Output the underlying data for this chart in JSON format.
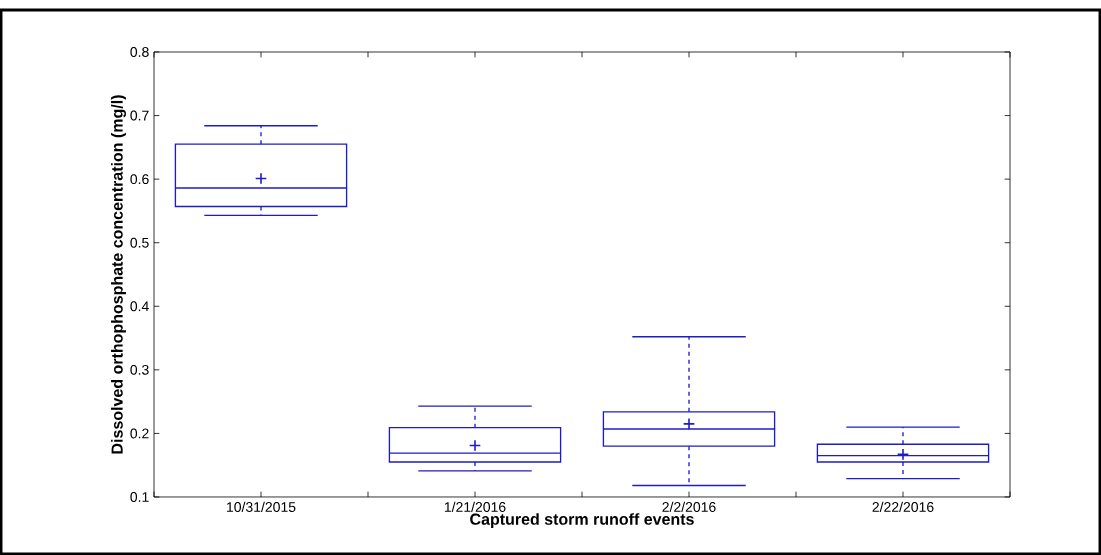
{
  "chart_data": {
    "type": "box",
    "xlabel": "Captured storm runoff events",
    "ylabel": "Dissolved orthophosphate concentration (mg/l)",
    "categories": [
      "10/31/2015",
      "1/21/2016",
      "2/2/2016",
      "2/22/2016"
    ],
    "color": "#1c1cc8",
    "boxes": [
      {
        "low": 0.543,
        "q1": 0.557,
        "median": 0.586,
        "q3": 0.655,
        "high": 0.684,
        "mean": 0.601
      },
      {
        "low": 0.141,
        "q1": 0.155,
        "median": 0.169,
        "q3": 0.209,
        "high": 0.243,
        "mean": 0.181
      },
      {
        "low": 0.118,
        "q1": 0.18,
        "median": 0.207,
        "q3": 0.234,
        "high": 0.352,
        "mean": 0.215
      },
      {
        "low": 0.129,
        "q1": 0.155,
        "median": 0.165,
        "q3": 0.183,
        "high": 0.21,
        "mean": 0.167
      }
    ],
    "ylim": [
      0.1,
      0.8
    ],
    "yticks": [
      0.1,
      0.2,
      0.3,
      0.4,
      0.5,
      0.6,
      0.7,
      0.8
    ]
  }
}
